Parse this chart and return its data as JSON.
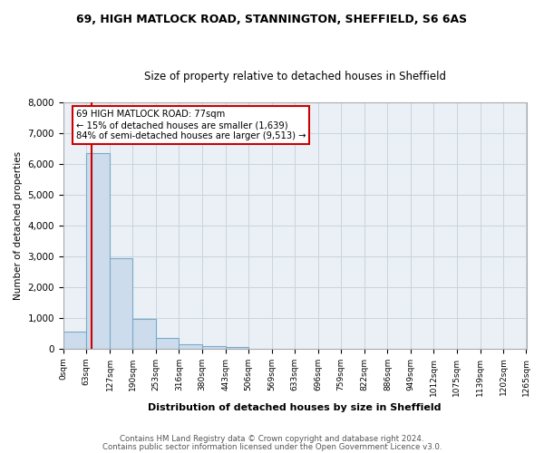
{
  "title1": "69, HIGH MATLOCK ROAD, STANNINGTON, SHEFFIELD, S6 6AS",
  "title2": "Size of property relative to detached houses in Sheffield",
  "xlabel": "Distribution of detached houses by size in Sheffield",
  "ylabel": "Number of detached properties",
  "footnote1": "Contains HM Land Registry data © Crown copyright and database right 2024.",
  "footnote2": "Contains public sector information licensed under the Open Government Licence v3.0.",
  "annotation_line1": "69 HIGH MATLOCK ROAD: 77sqm",
  "annotation_line2": "← 15% of detached houses are smaller (1,639)",
  "annotation_line3": "84% of semi-detached houses are larger (9,513) →",
  "property_sqm": 77,
  "bin_edges": [
    0,
    63,
    127,
    190,
    253,
    316,
    380,
    443,
    506,
    569,
    633,
    696,
    759,
    822,
    886,
    949,
    1012,
    1075,
    1139,
    1202,
    1265
  ],
  "bin_counts": [
    550,
    6350,
    2950,
    970,
    340,
    155,
    90,
    65,
    0,
    0,
    0,
    0,
    0,
    0,
    0,
    0,
    0,
    0,
    0,
    0
  ],
  "bar_color": "#ccdcec",
  "bar_edge_color": "#7aaac8",
  "highlight_color": "#cc0000",
  "grid_color": "#c8d4de",
  "background_color": "#eaf0f6",
  "ylim": [
    0,
    8000
  ],
  "yticks": [
    0,
    1000,
    2000,
    3000,
    4000,
    5000,
    6000,
    7000,
    8000
  ],
  "annotation_box_color": "white",
  "annotation_box_edge": "#cc0000"
}
